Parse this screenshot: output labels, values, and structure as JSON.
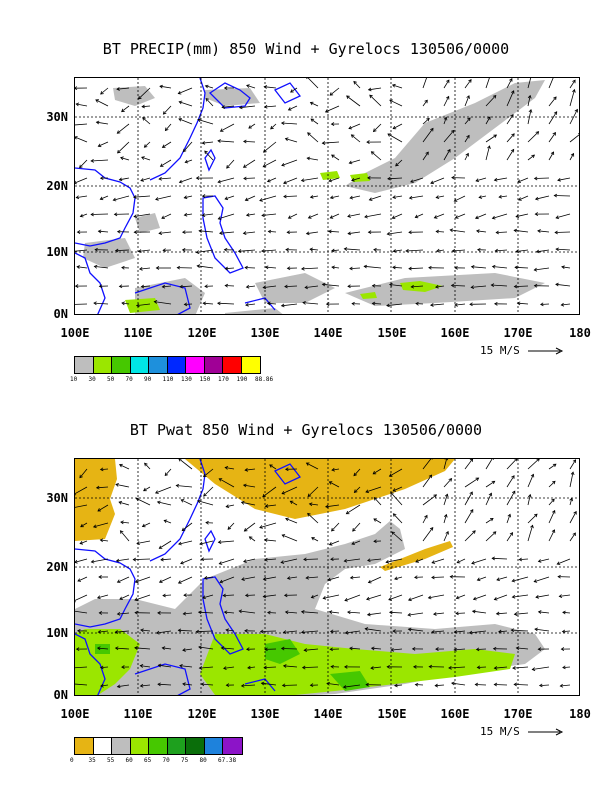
{
  "panels": [
    {
      "title": "BT PRECIP(mm) 850 Wind + Gyrelocs 130506/0000",
      "scale_label": "15 M/S",
      "legend": {
        "colors": [
          "#bebebe",
          "#9be600",
          "#46c800",
          "#00e6e6",
          "#1e90dc",
          "#0028ff",
          "#ff00ff",
          "#a00096",
          "#ff0000",
          "#ffff00"
        ],
        "labels": [
          "10",
          "30",
          "50",
          "70",
          "90",
          "110",
          "130",
          "150",
          "170",
          "190",
          "88.86"
        ]
      }
    },
    {
      "title": "BT Pwat 850 Wind + Gyrelocs 130506/0000",
      "scale_label": "15 M/S",
      "legend": {
        "colors": [
          "#e6b414",
          "#ffffff",
          "#bebebe",
          "#9be600",
          "#46c800",
          "#1ea01e",
          "#0a6e0a",
          "#1e82dc",
          "#8c14c8"
        ],
        "labels": [
          "0",
          "35",
          "55",
          "60",
          "65",
          "70",
          "75",
          "80",
          "67.38"
        ]
      }
    }
  ],
  "axes": {
    "x_ticks": [
      "100E",
      "110E",
      "120E",
      "130E",
      "140E",
      "150E",
      "160E",
      "170E",
      "180"
    ],
    "y_ticks": [
      "30N",
      "20N",
      "10N",
      "0N"
    ]
  },
  "colors": {
    "coast": "#1010ff",
    "arrow": "#000000",
    "grid": "#000000"
  }
}
